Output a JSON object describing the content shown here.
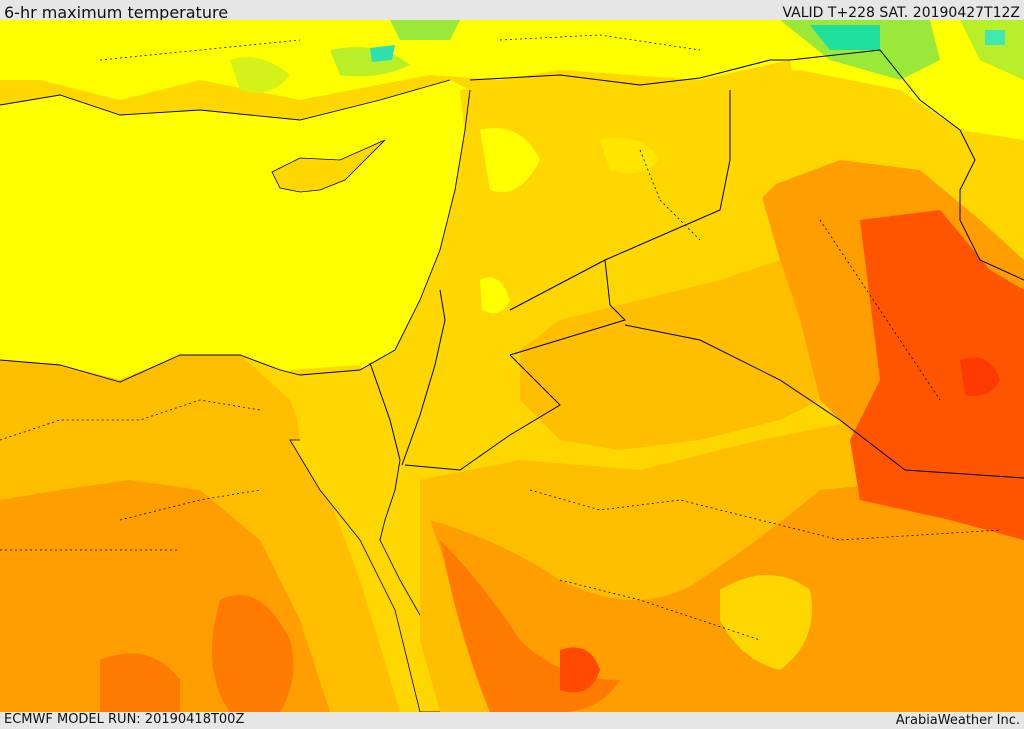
{
  "header": {
    "title": "6-hr maximum temperature",
    "valid": "VALID T+228 SAT. 20190427T12Z"
  },
  "footer": {
    "model_run": "ECMWF MODEL RUN: 20190418T00Z",
    "credit": "ArabiaWeather Inc."
  },
  "map": {
    "variable": "6-hr maximum temperature",
    "palette": {
      "cool_cyan": "#20e0a0",
      "green": "#9ae83a",
      "light_green": "#d4f21a",
      "yellow": "#ffff00",
      "gold": "#ffd700",
      "amber": "#ffbf00",
      "orange": "#ff9e00",
      "dark_orange": "#ff7a00",
      "red_orange": "#ff5500",
      "red": "#ff2a00"
    },
    "borders_color": "#000000"
  }
}
